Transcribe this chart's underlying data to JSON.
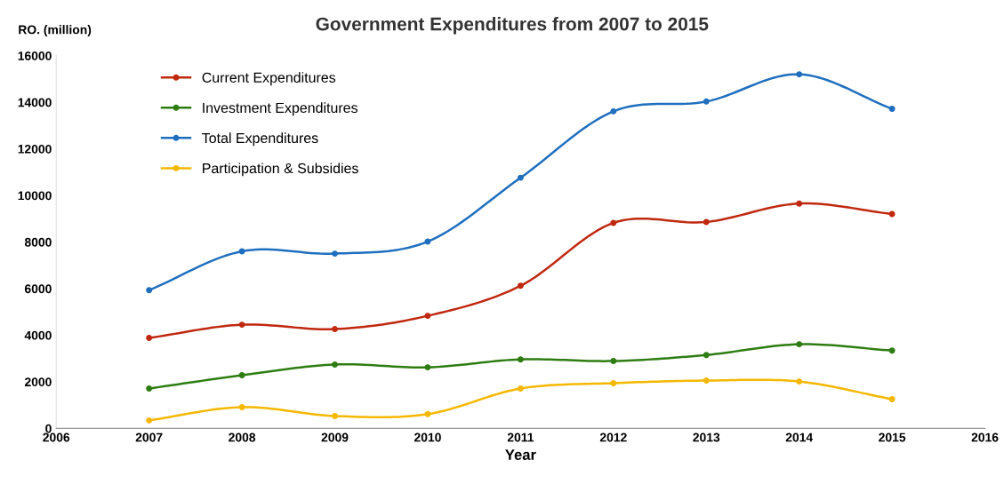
{
  "chart_data": {
    "type": "line",
    "title": "Government Expenditures from 2007 to 2015",
    "ylabel": "RO. (million)",
    "xlabel": "Year",
    "x": [
      2007,
      2008,
      2009,
      2010,
      2011,
      2012,
      2013,
      2014,
      2015
    ],
    "series": [
      {
        "name": "Current Expenditures",
        "color": "#c0280f",
        "values": [
          3880,
          4450,
          4260,
          4830,
          6120,
          8820,
          8860,
          9650,
          9200
        ]
      },
      {
        "name": "Investment Expenditures",
        "color": "#2e7d12",
        "values": [
          1710,
          2280,
          2740,
          2620,
          2960,
          2890,
          3150,
          3610,
          3340
        ]
      },
      {
        "name": "Total Expenditures",
        "color": "#1f6fbf",
        "values": [
          5930,
          7600,
          7500,
          8020,
          10760,
          13610,
          14030,
          15200,
          13720
        ]
      },
      {
        "name": "Participation & Subsidies",
        "color": "#f5b800",
        "values": [
          340,
          910,
          530,
          610,
          1710,
          1940,
          2050,
          2010,
          1250
        ]
      }
    ],
    "xlim": [
      2006,
      2016
    ],
    "xticks": [
      2006,
      2007,
      2008,
      2009,
      2010,
      2011,
      2012,
      2013,
      2014,
      2015,
      2016
    ],
    "ylim": [
      0,
      16000
    ],
    "yticks": [
      0,
      2000,
      4000,
      6000,
      8000,
      10000,
      12000,
      14000,
      16000
    ],
    "grid": false,
    "legend": "top left",
    "marker": "circle",
    "line_style": "solid"
  }
}
